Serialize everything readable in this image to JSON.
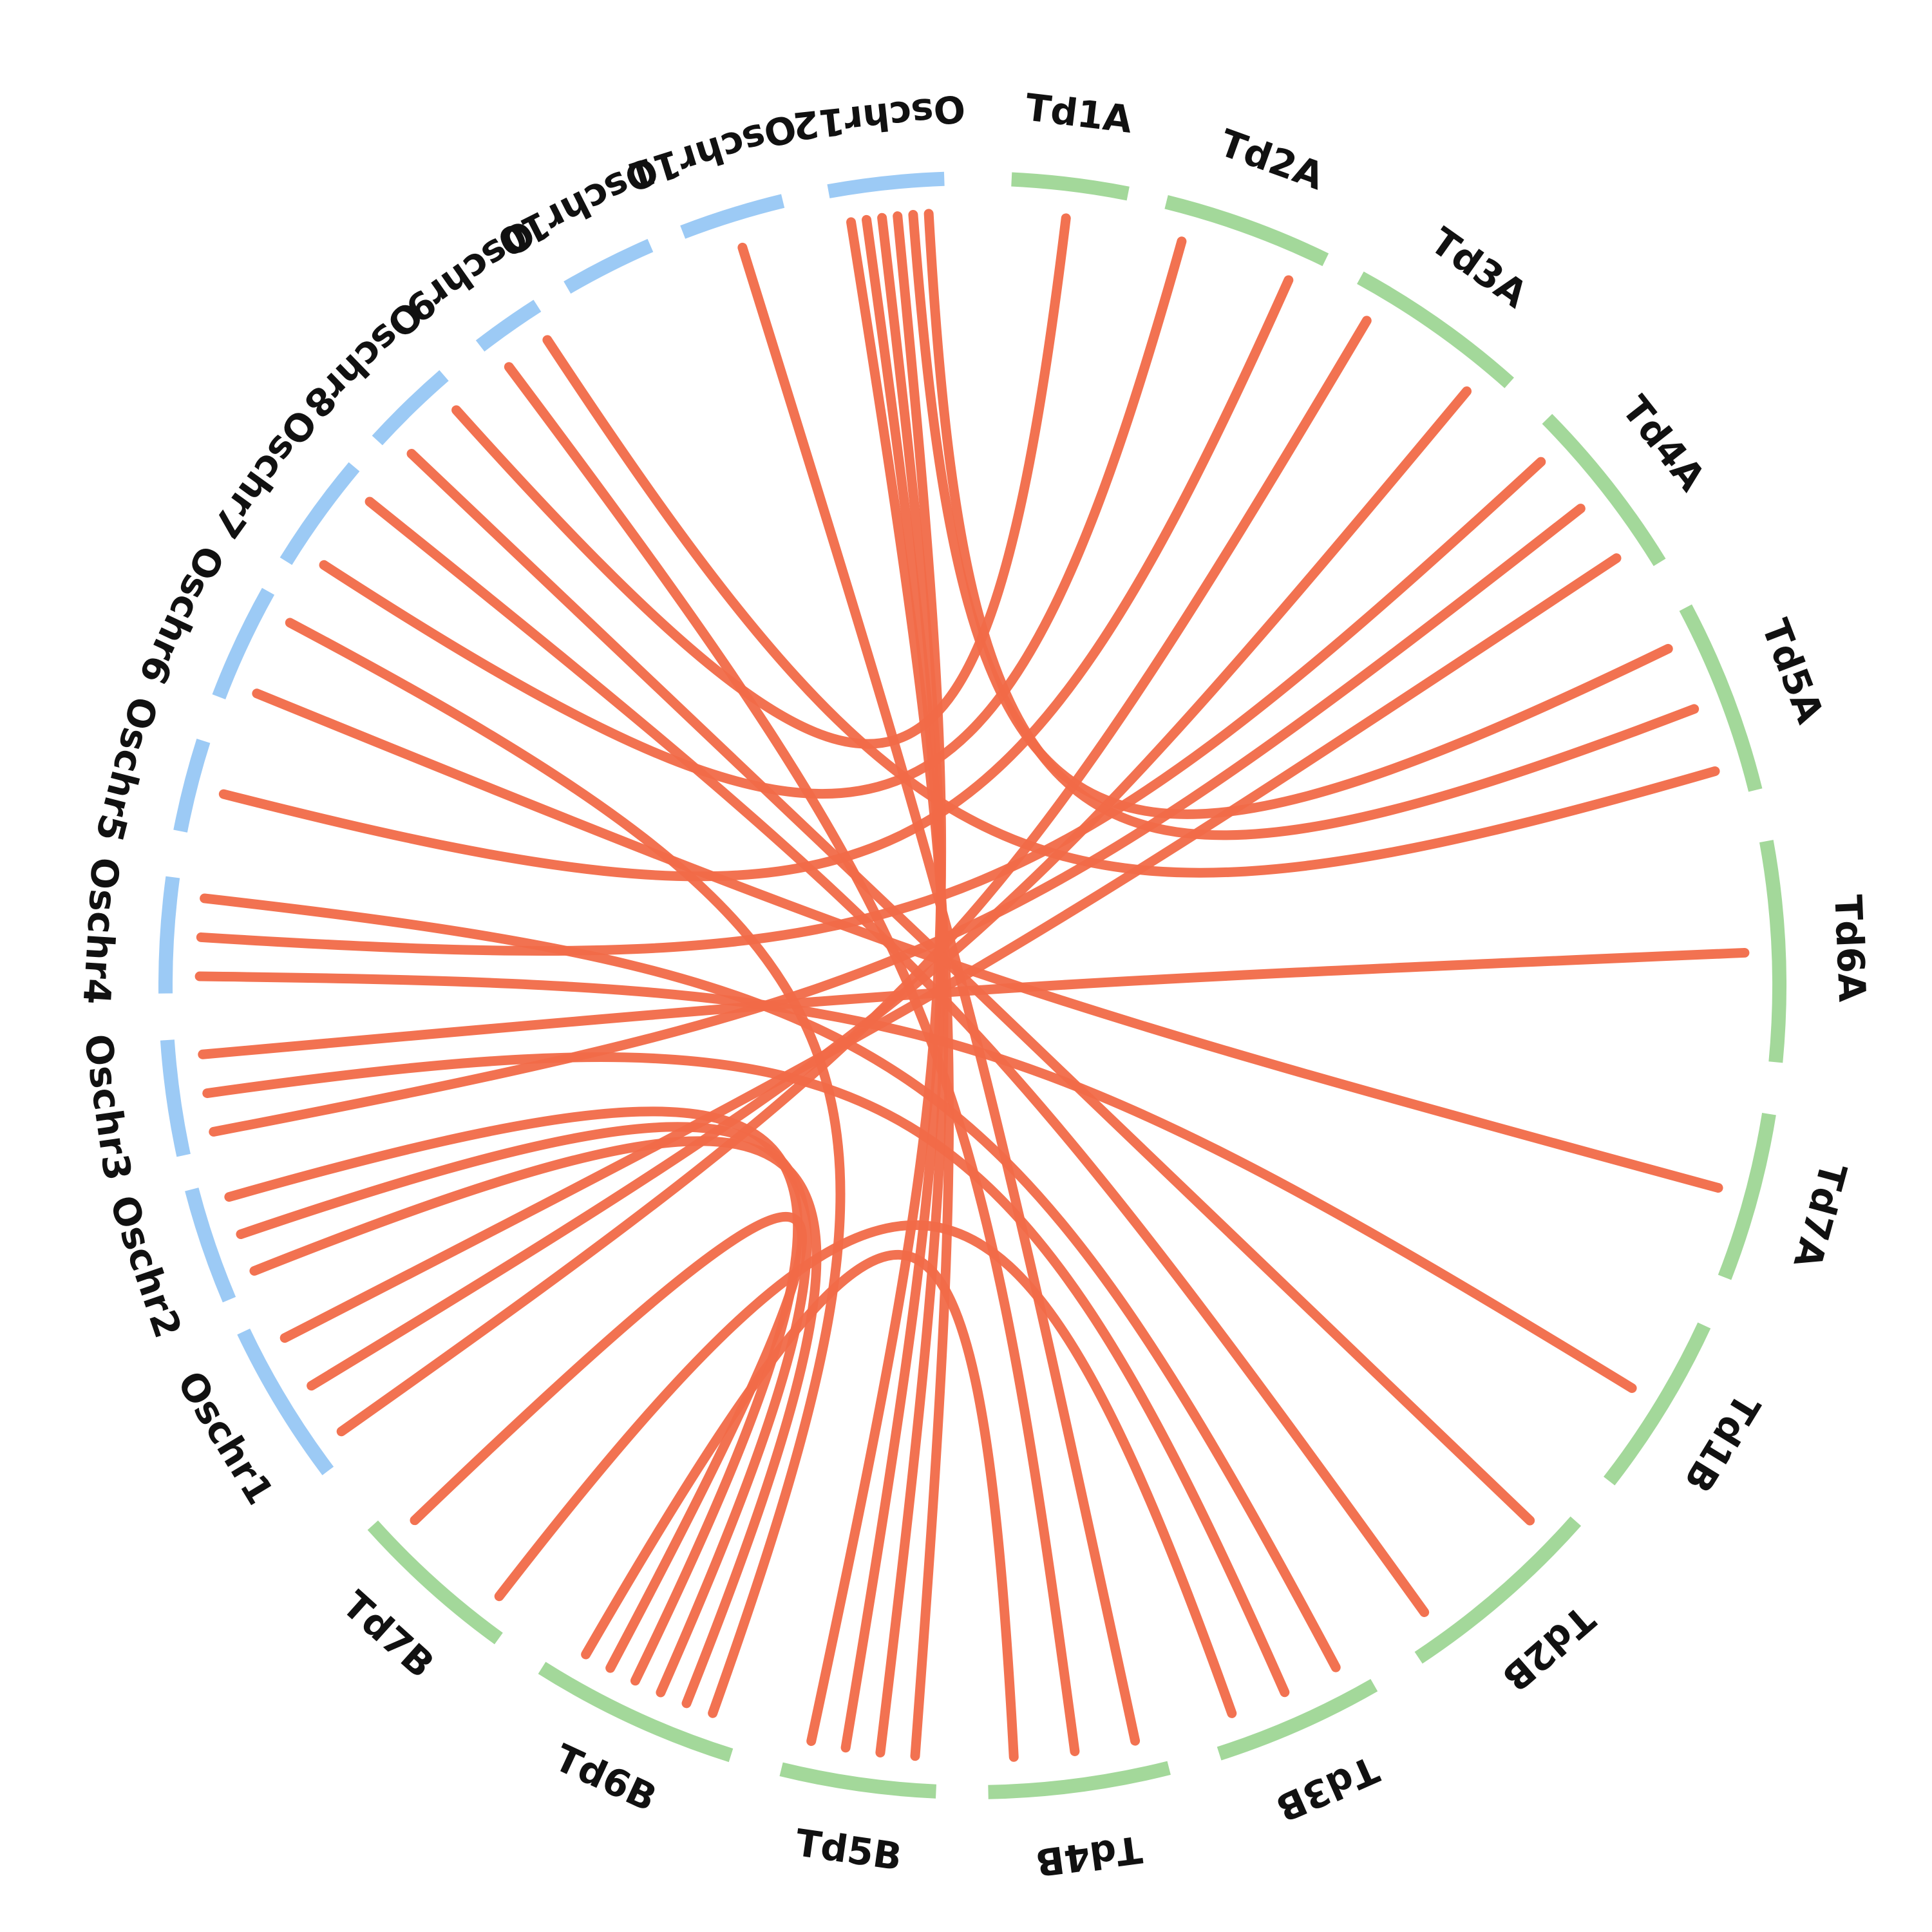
{
  "chart_data": {
    "type": "chord",
    "title": "",
    "legend": "none",
    "colors": {
      "oryza": "#9ccaf5",
      "triticum": "#a3d89a",
      "link": "#f16a48"
    },
    "chromosomes": [
      {
        "id": "Td1A",
        "label": "Td1A",
        "group": "triticum"
      },
      {
        "id": "Td2A",
        "label": "Td2A",
        "group": "triticum"
      },
      {
        "id": "Td3A",
        "label": "Td3A",
        "group": "triticum"
      },
      {
        "id": "Td4A",
        "label": "Td4A",
        "group": "triticum"
      },
      {
        "id": "Td5A",
        "label": "Td5A",
        "group": "triticum"
      },
      {
        "id": "Td6A",
        "label": "Td6A",
        "group": "triticum"
      },
      {
        "id": "Td7A",
        "label": "Td7A",
        "group": "triticum"
      },
      {
        "id": "Td1B",
        "label": "Td1B",
        "group": "triticum"
      },
      {
        "id": "Td2B",
        "label": "Td2B",
        "group": "triticum"
      },
      {
        "id": "Td3B",
        "label": "Td3B",
        "group": "triticum"
      },
      {
        "id": "Td4B",
        "label": "Td4B",
        "group": "triticum"
      },
      {
        "id": "Td5B",
        "label": "Td5B",
        "group": "triticum"
      },
      {
        "id": "Td6B",
        "label": "Td6B",
        "group": "triticum"
      },
      {
        "id": "Td7B",
        "label": "Td7B",
        "group": "triticum"
      },
      {
        "id": "Oschr1",
        "label": "Oschr1",
        "group": "oryza"
      },
      {
        "id": "Oschr2",
        "label": "Oschr2",
        "group": "oryza"
      },
      {
        "id": "Oschr3",
        "label": "Oschr3",
        "group": "oryza"
      },
      {
        "id": "Oschr4",
        "label": "Oschr4",
        "group": "oryza"
      },
      {
        "id": "Oschr5",
        "label": "Oschr5",
        "group": "oryza"
      },
      {
        "id": "Oschr6",
        "label": "Oschr6",
        "group": "oryza"
      },
      {
        "id": "Oschr7",
        "label": "Oschr7",
        "group": "oryza"
      },
      {
        "id": "Oschr8",
        "label": "Oschr8",
        "group": "oryza"
      },
      {
        "id": "Oschr9",
        "label": "Oschr9",
        "group": "oryza"
      },
      {
        "id": "Oschr10",
        "label": "Oschr10",
        "group": "oryza"
      },
      {
        "id": "Oschr11",
        "label": "Oschr11",
        "group": "oryza"
      },
      {
        "id": "Oschr12",
        "label": "Oschr12",
        "group": "oryza"
      }
    ],
    "links": [
      {
        "from": "Oschr12",
        "to": "Td5B"
      },
      {
        "from": "Oschr12",
        "to": "Td5B"
      },
      {
        "from": "Oschr12",
        "to": "Td5B"
      },
      {
        "from": "Oschr12",
        "to": "Td5B"
      },
      {
        "from": "Oschr12",
        "to": "Td5A"
      },
      {
        "from": "Oschr12",
        "to": "Td5A"
      },
      {
        "from": "Oschr11",
        "to": "Td4B"
      },
      {
        "from": "Oschr9",
        "to": "Td4B"
      },
      {
        "from": "Oschr9",
        "to": "Td5A"
      },
      {
        "from": "Oschr8",
        "to": "Td2B"
      },
      {
        "from": "Oschr8",
        "to": "Td1A"
      },
      {
        "from": "Oschr7",
        "to": "Td2A"
      },
      {
        "from": "Oschr7",
        "to": "Td2B"
      },
      {
        "from": "Oschr6",
        "to": "Td7A"
      },
      {
        "from": "Oschr6",
        "to": "Td6B"
      },
      {
        "from": "Oschr5",
        "to": "Td2A"
      },
      {
        "from": "Oschr4",
        "to": "Td1B"
      },
      {
        "from": "Oschr4",
        "to": "Td4A"
      },
      {
        "from": "Oschr4",
        "to": "Td3B"
      },
      {
        "from": "Oschr3",
        "to": "Td4A"
      },
      {
        "from": "Oschr3",
        "to": "Td3B"
      },
      {
        "from": "Oschr3",
        "to": "Td6A"
      },
      {
        "from": "Oschr2",
        "to": "Td6B"
      },
      {
        "from": "Oschr2",
        "to": "Td6B"
      },
      {
        "from": "Oschr2",
        "to": "Td6B"
      },
      {
        "from": "Oschr1",
        "to": "Td3A"
      },
      {
        "from": "Oschr1",
        "to": "Td3A"
      },
      {
        "from": "Oschr1",
        "to": "Td4A"
      },
      {
        "from": "Td7B",
        "to": "Td3B"
      },
      {
        "from": "Td7B",
        "to": "Td6B"
      },
      {
        "from": "Td6B",
        "to": "Td4B"
      }
    ]
  }
}
